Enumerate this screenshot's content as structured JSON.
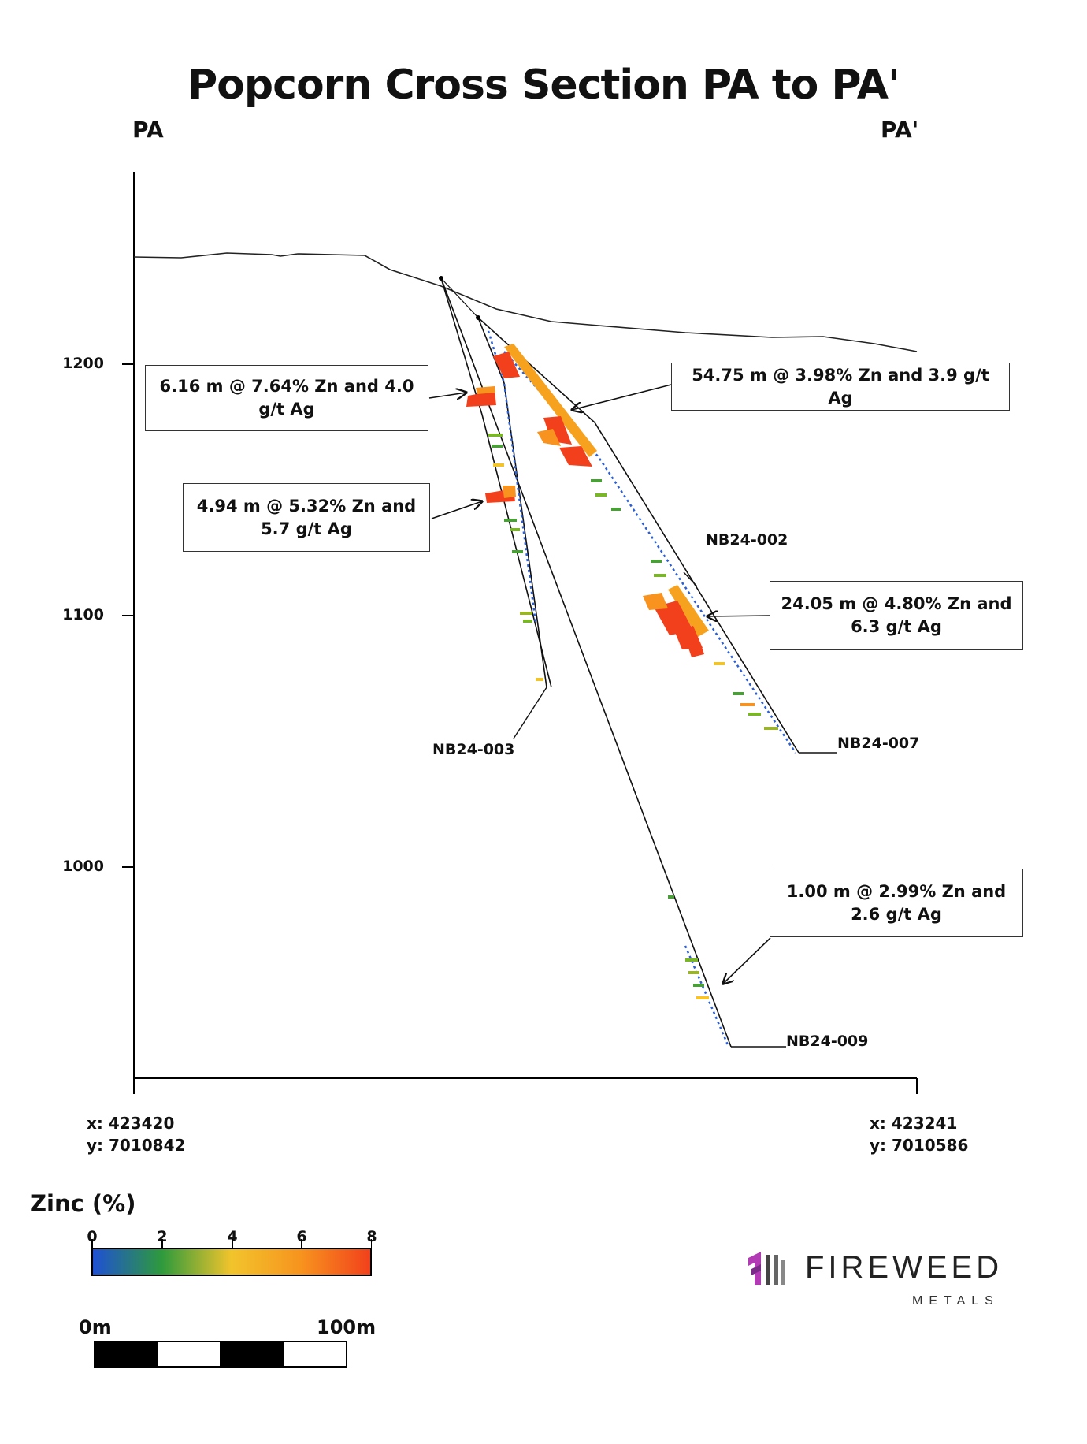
{
  "title": "Popcorn Cross Section PA to PA'",
  "section_start": "PA",
  "section_end": "PA'",
  "start_coord": {
    "x": "x: 423420",
    "y": "y: 7010842"
  },
  "end_coord": {
    "x": "x: 423241",
    "y": "y: 7010586"
  },
  "elevation_ticks": [
    "1200",
    "1100",
    "1000"
  ],
  "drill_holes": [
    {
      "id": "NB24-002"
    },
    {
      "id": "NB24-003"
    },
    {
      "id": "NB24-007"
    },
    {
      "id": "NB24-009"
    }
  ],
  "intercepts": [
    {
      "hole": "NB24-003",
      "text": "6.16 m @ 7.64% Zn and 4.0 g/t Ag"
    },
    {
      "hole": "NB24-003",
      "text": "4.94 m @ 5.32% Zn and 5.7 g/t Ag"
    },
    {
      "hole": "NB24-007",
      "text": "54.75 m @ 3.98% Zn and 3.9 g/t Ag"
    },
    {
      "hole": "NB24-007",
      "text": "24.05 m @ 4.80% Zn and 6.3 g/t Ag"
    },
    {
      "hole": "NB24-009",
      "text": "1.00 m @ 2.99% Zn and 2.6 g/t Ag"
    }
  ],
  "legend": {
    "title": "Zinc (%)",
    "ticks": [
      "0",
      "2",
      "4",
      "6",
      "8"
    ],
    "colors": [
      "#1f4fd6",
      "#2e9a3c",
      "#f2c42c",
      "#f7931e",
      "#f2401c"
    ]
  },
  "scale_bar": {
    "start_label": "0m",
    "end_label": "100m"
  },
  "brand": {
    "name": "FIREWEED",
    "sub": "METALS",
    "logo_color": "#b23bb5"
  }
}
